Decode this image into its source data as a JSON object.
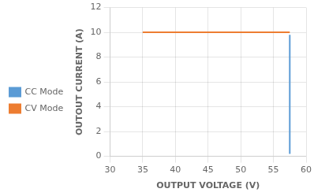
{
  "chart_data": {
    "type": "line",
    "xlabel": "OUTPUT VOLTAGE (V)",
    "ylabel": "OUTOUT CURRENT (A)",
    "series": [
      {
        "name": "CC Mode",
        "color": "#5B9BD5",
        "x": [
          57.5,
          57.5
        ],
        "values": [
          9.8,
          0.2
        ]
      },
      {
        "name": "CV Mode",
        "color": "#ED7D31",
        "x": [
          35.0,
          57.5
        ],
        "values": [
          10.0,
          10.0
        ]
      }
    ],
    "xlim": [
      30,
      60
    ],
    "xticks": [
      30,
      35,
      40,
      45,
      50,
      55,
      60
    ],
    "ylim": [
      0,
      12
    ],
    "yticks": [
      0,
      2,
      4,
      6,
      8,
      10,
      12
    ],
    "grid": true,
    "legend": "left"
  }
}
